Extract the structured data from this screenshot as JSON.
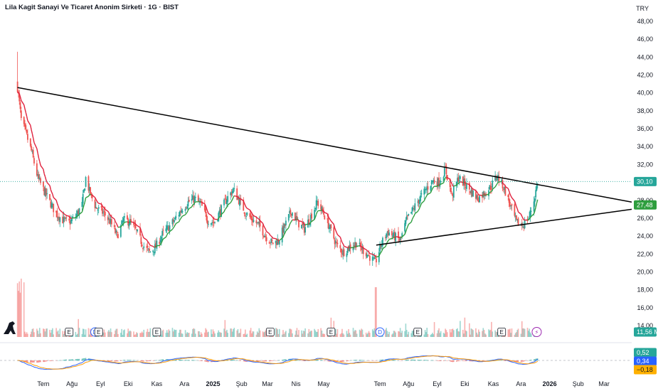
{
  "header": {
    "title": "Lila Kagit Sanayi Ve Ticaret Anonim Sirketi · 1G · BIST",
    "currency": "TRY"
  },
  "colors": {
    "up": "#26a69a",
    "down": "#ef5350",
    "ma_down": "#e0203c",
    "ma_up": "#2e9e3e",
    "macd": "#2962ff",
    "signal": "#ff9800",
    "trendline": "#000000"
  },
  "badges": {
    "last_price": "30,10",
    "ma_value": "27,48",
    "volume": "11,56 M",
    "macd_hist": "0,52",
    "macd_line": "0,34",
    "signal_line": "−0,18"
  },
  "events": [
    {
      "label": "E",
      "date": "2024-07-29",
      "type": "earnings"
    },
    {
      "label": "D",
      "date": "2024-08-26",
      "type": "dividend"
    },
    {
      "label": "E",
      "date": "2024-08-30",
      "type": "earnings"
    },
    {
      "label": "E",
      "date": "2024-11-01",
      "type": "earnings"
    },
    {
      "label": "E",
      "date": "2025-03-04",
      "type": "earnings"
    },
    {
      "label": "E",
      "date": "2025-05-09",
      "type": "earnings"
    },
    {
      "label": "D",
      "date": "2025-07-01",
      "type": "dividend"
    },
    {
      "label": "E",
      "date": "2025-08-11",
      "type": "earnings"
    },
    {
      "label": "E",
      "date": "2025-11-10",
      "type": "earnings"
    },
    {
      "label": "⚡",
      "date": "2025-12-18",
      "type": "alert"
    }
  ],
  "chart_data": {
    "type": "candlestick",
    "x_range": [
      "2024-05-15",
      "2026-03-31"
    ],
    "y_range": [
      14,
      48
    ],
    "y_ticks": [
      "14,00",
      "16,00",
      "18,00",
      "20,00",
      "22,00",
      "24,00",
      "26,00",
      "28,00",
      "30,00",
      "32,00",
      "34,00",
      "36,00",
      "38,00",
      "40,00",
      "42,00",
      "44,00",
      "46,00",
      "48,00"
    ],
    "x_ticks": [
      {
        "label": "Tem",
        "date": "2024-07-01"
      },
      {
        "label": "Ağu",
        "date": "2024-08-01"
      },
      {
        "label": "Eyl",
        "date": "2024-09-01"
      },
      {
        "label": "Eki",
        "date": "2024-10-01"
      },
      {
        "label": "Kas",
        "date": "2024-11-01"
      },
      {
        "label": "Ara",
        "date": "2024-12-01"
      },
      {
        "label": "2025",
        "date": "2025-01-01"
      },
      {
        "label": "Şub",
        "date": "2025-02-01"
      },
      {
        "label": "Mar",
        "date": "2025-03-01"
      },
      {
        "label": "Nis",
        "date": "2025-04-01"
      },
      {
        "label": "May",
        "date": "2025-05-01"
      },
      {
        "label": "Tem",
        "date": "2025-07-01"
      },
      {
        "label": "Ağu",
        "date": "2025-08-01"
      },
      {
        "label": "Eyl",
        "date": "2025-09-01"
      },
      {
        "label": "Eki",
        "date": "2025-10-01"
      },
      {
        "label": "Kas",
        "date": "2025-11-01"
      },
      {
        "label": "Ara",
        "date": "2025-12-01"
      },
      {
        "label": "2026",
        "date": "2026-01-01"
      },
      {
        "label": "Şub",
        "date": "2026-02-01"
      },
      {
        "label": "Mar",
        "date": "2026-03-01"
      }
    ],
    "close_path": [
      {
        "date": "2024-06-03",
        "close": 40.6
      },
      {
        "date": "2024-06-07",
        "close": 37.0
      },
      {
        "date": "2024-06-12",
        "close": 35.5
      },
      {
        "date": "2024-06-18",
        "close": 33.5
      },
      {
        "date": "2024-06-25",
        "close": 30.5
      },
      {
        "date": "2024-07-02",
        "close": 29.0
      },
      {
        "date": "2024-07-08",
        "close": 27.8
      },
      {
        "date": "2024-07-15",
        "close": 26.5
      },
      {
        "date": "2024-07-22",
        "close": 25.8
      },
      {
        "date": "2024-07-29",
        "close": 25.5
      },
      {
        "date": "2024-08-05",
        "close": 26.2
      },
      {
        "date": "2024-08-12",
        "close": 27.5
      },
      {
        "date": "2024-08-16",
        "close": 30.5
      },
      {
        "date": "2024-08-20",
        "close": 29.0
      },
      {
        "date": "2024-08-27",
        "close": 27.2
      },
      {
        "date": "2024-09-05",
        "close": 26.5
      },
      {
        "date": "2024-09-12",
        "close": 25.5
      },
      {
        "date": "2024-09-19",
        "close": 24.0
      },
      {
        "date": "2024-09-26",
        "close": 25.8
      },
      {
        "date": "2024-10-03",
        "close": 25.6
      },
      {
        "date": "2024-10-10",
        "close": 24.5
      },
      {
        "date": "2024-10-17",
        "close": 23.0
      },
      {
        "date": "2024-10-24",
        "close": 22.2
      },
      {
        "date": "2024-10-31",
        "close": 22.8
      },
      {
        "date": "2024-11-07",
        "close": 24.2
      },
      {
        "date": "2024-11-14",
        "close": 25.0
      },
      {
        "date": "2024-11-21",
        "close": 25.9
      },
      {
        "date": "2024-11-28",
        "close": 27.0
      },
      {
        "date": "2024-12-05",
        "close": 27.8
      },
      {
        "date": "2024-12-12",
        "close": 28.2
      },
      {
        "date": "2024-12-19",
        "close": 27.5
      },
      {
        "date": "2024-12-26",
        "close": 25.8
      },
      {
        "date": "2025-01-02",
        "close": 25.5
      },
      {
        "date": "2025-01-09",
        "close": 26.8
      },
      {
        "date": "2025-01-16",
        "close": 28.2
      },
      {
        "date": "2025-01-23",
        "close": 29.2
      },
      {
        "date": "2025-01-30",
        "close": 27.8
      },
      {
        "date": "2025-02-06",
        "close": 26.5
      },
      {
        "date": "2025-02-13",
        "close": 25.8
      },
      {
        "date": "2025-02-20",
        "close": 25.2
      },
      {
        "date": "2025-02-27",
        "close": 24.0
      },
      {
        "date": "2025-03-06",
        "close": 23.2
      },
      {
        "date": "2025-03-13",
        "close": 23.5
      },
      {
        "date": "2025-03-20",
        "close": 25.2
      },
      {
        "date": "2025-03-27",
        "close": 26.8
      },
      {
        "date": "2025-04-03",
        "close": 25.5
      },
      {
        "date": "2025-04-10",
        "close": 24.8
      },
      {
        "date": "2025-04-17",
        "close": 26.2
      },
      {
        "date": "2025-04-24",
        "close": 27.8
      },
      {
        "date": "2025-05-01",
        "close": 26.5
      },
      {
        "date": "2025-05-08",
        "close": 24.8
      },
      {
        "date": "2025-05-15",
        "close": 23.0
      },
      {
        "date": "2025-05-22",
        "close": 22.2
      },
      {
        "date": "2025-05-29",
        "close": 22.8
      },
      {
        "date": "2025-06-05",
        "close": 23.2
      },
      {
        "date": "2025-06-12",
        "close": 22.5
      },
      {
        "date": "2025-06-19",
        "close": 21.8
      },
      {
        "date": "2025-06-26",
        "close": 21.0
      },
      {
        "date": "2025-07-02",
        "close": 23.0
      },
      {
        "date": "2025-07-09",
        "close": 24.5
      },
      {
        "date": "2025-07-16",
        "close": 24.0
      },
      {
        "date": "2025-07-23",
        "close": 23.5
      },
      {
        "date": "2025-07-30",
        "close": 25.8
      },
      {
        "date": "2025-08-06",
        "close": 27.0
      },
      {
        "date": "2025-08-13",
        "close": 28.2
      },
      {
        "date": "2025-08-20",
        "close": 29.2
      },
      {
        "date": "2025-08-27",
        "close": 30.2
      },
      {
        "date": "2025-09-03",
        "close": 30.0
      },
      {
        "date": "2025-09-10",
        "close": 31.5
      },
      {
        "date": "2025-09-17",
        "close": 28.5
      },
      {
        "date": "2025-09-24",
        "close": 30.5
      },
      {
        "date": "2025-10-01",
        "close": 29.8
      },
      {
        "date": "2025-10-08",
        "close": 29.0
      },
      {
        "date": "2025-10-15",
        "close": 28.2
      },
      {
        "date": "2025-10-22",
        "close": 28.8
      },
      {
        "date": "2025-10-29",
        "close": 29.5
      },
      {
        "date": "2025-11-05",
        "close": 30.8
      },
      {
        "date": "2025-11-12",
        "close": 29.5
      },
      {
        "date": "2025-11-19",
        "close": 27.5
      },
      {
        "date": "2025-11-26",
        "close": 25.5
      },
      {
        "date": "2025-12-03",
        "close": 25.2
      },
      {
        "date": "2025-12-10",
        "close": 26.2
      },
      {
        "date": "2025-12-15",
        "close": 28.0
      },
      {
        "date": "2025-12-19",
        "close": 30.1
      }
    ],
    "trendlines": [
      {
        "name": "",
        "from": {
          "date": "2024-06-03",
          "price": 40.6
        },
        "to": {
          "date": "2026-03-31",
          "price": 27.8
        }
      },
      {
        "name": "",
        "from": {
          "date": "2025-06-27",
          "price": 23.0
        },
        "to": {
          "date": "2026-03-31",
          "price": 27.0
        }
      }
    ],
    "last_price": 30.1,
    "ma_last": 27.48,
    "volume_last": "11,56 M",
    "macd": {
      "histogram": 0.52,
      "macd": 0.34,
      "signal": -0.18
    },
    "grid": false,
    "legend": "none"
  }
}
